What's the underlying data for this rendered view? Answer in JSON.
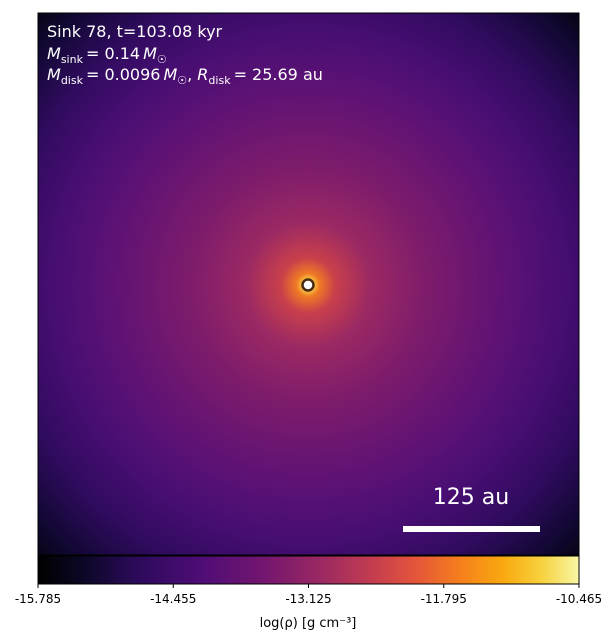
{
  "chart_data": {
    "type": "heatmap",
    "annotation": {
      "sink_line": "Sink 78, t=103.08 kyr",
      "msink_value": "= 0.14",
      "mdisk_value": "= 0.0096",
      "rdisk_value": "= 25.69 au"
    },
    "scale_bar_label": "125 au",
    "colorbar": {
      "label": "log(ρ) [g cm⁻³]",
      "min": -15.785,
      "max": -10.465,
      "ticks": [
        "-15.785",
        "-14.455",
        "-13.125",
        "-11.795",
        "-10.465"
      ],
      "colormap": "inferno/plasma-like"
    },
    "field": {
      "peak_log_rho": -10.9,
      "background_log_rho": -14.1,
      "corner_log_rho": -15.6,
      "center_fraction": [
        0.5,
        0.5
      ]
    }
  }
}
